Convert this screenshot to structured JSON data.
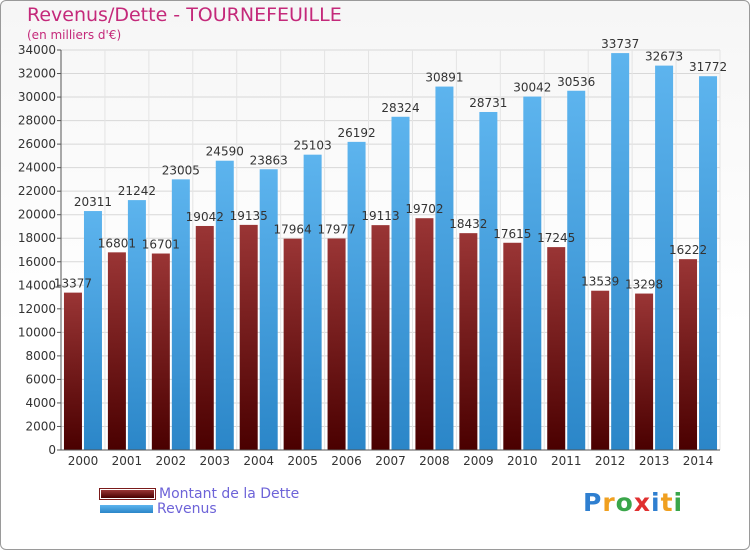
{
  "header": {
    "title": "Revenus/Dette - TOURNEFEUILLE",
    "subtitle": "(en milliers d'€)"
  },
  "brand": {
    "logo_text": "Proxiti",
    "letters": [
      {
        "ch": "P",
        "color": "#2f7fd0"
      },
      {
        "ch": "r",
        "color": "#f0a020"
      },
      {
        "ch": "o",
        "color": "#3aa64a"
      },
      {
        "ch": "x",
        "color": "#e03030"
      },
      {
        "ch": "i",
        "color": "#2f7fd0"
      },
      {
        "ch": "t",
        "color": "#f0a020"
      },
      {
        "ch": "i",
        "color": "#3aa64a"
      }
    ]
  },
  "colors": {
    "dette": "#7a1a1a",
    "revenus": "#4aa3e3",
    "title": "#c4297a",
    "legend_text": "#6d63d8"
  },
  "chart_data": {
    "type": "bar",
    "title": "Revenus/Dette - TOURNEFEUILLE",
    "subtitle": "(en milliers d'€)",
    "categories": [
      "2000",
      "2001",
      "2002",
      "2003",
      "2004",
      "2005",
      "2006",
      "2007",
      "2008",
      "2009",
      "2010",
      "2011",
      "2012",
      "2013",
      "2014"
    ],
    "series": [
      {
        "name": "Montant de la Dette",
        "values": [
          13377,
          16801,
          16701,
          19042,
          19135,
          17964,
          17977,
          19113,
          19702,
          18432,
          17615,
          17245,
          13539,
          13298,
          16222
        ],
        "labels": [
          "13377",
          "16801",
          "16701",
          "19042",
          "19135",
          "17964",
          "17977",
          "19113",
          "19702",
          "18432",
          "17615",
          "17245",
          "13539",
          "13298",
          "16222"
        ]
      },
      {
        "name": "Revenus",
        "values": [
          20311,
          21242,
          23005,
          24590,
          23863,
          25103,
          26192,
          28324,
          30891,
          28731,
          30042,
          30536,
          33737,
          32673,
          31772
        ],
        "labels": [
          "20311",
          "21242",
          "23005",
          "24590",
          "23863",
          "25103",
          "26192",
          "28324",
          "30891",
          "28731",
          "30042",
          "30536",
          "33737",
          "32673",
          "31772"
        ]
      }
    ],
    "ylim": [
      0,
      34000
    ],
    "yticks": [
      0,
      2000,
      4000,
      6000,
      8000,
      10000,
      12000,
      14000,
      16000,
      18000,
      20000,
      22000,
      24000,
      26000,
      28000,
      30000,
      32000,
      34000
    ],
    "grid": true,
    "legend": "bottom-left"
  }
}
